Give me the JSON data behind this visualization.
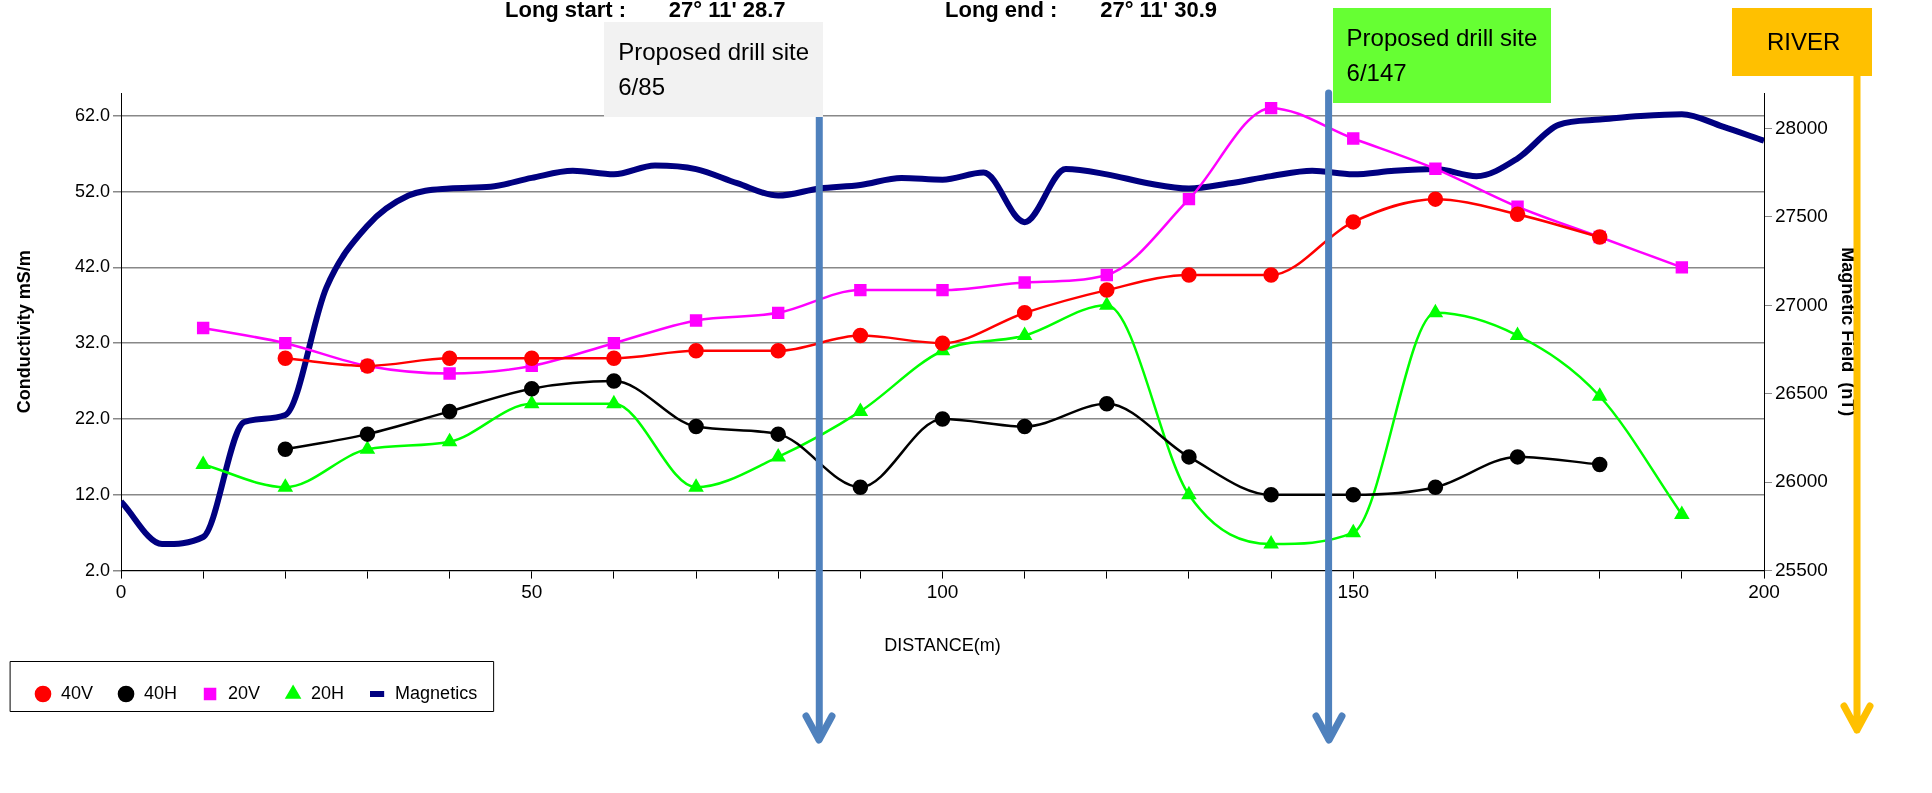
{
  "chart_data": {
    "type": "line",
    "xlabel": "DISTANCE(m)",
    "ylabel": "Conductivity mS/m",
    "y2label": "Magnetic Field  (nT)",
    "xlim": [
      0,
      200
    ],
    "xticks": [
      0,
      {
        "value": 10,
        "label": null
      },
      {
        "value": 20,
        "label": null
      },
      {
        "value": 30,
        "label": null
      },
      {
        "value": 40,
        "label": null
      },
      50,
      {
        "value": 60,
        "label": null
      },
      {
        "value": 70,
        "label": null
      },
      {
        "value": 80,
        "label": null
      },
      {
        "value": 90,
        "label": null
      },
      100,
      {
        "value": 110,
        "label": null
      },
      {
        "value": 120,
        "label": null
      },
      {
        "value": 130,
        "label": null
      },
      {
        "value": 140,
        "label": null
      },
      150,
      {
        "value": 160,
        "label": null
      },
      {
        "value": 170,
        "label": null
      },
      {
        "value": 180,
        "label": null
      },
      {
        "value": 190,
        "label": null
      },
      200
    ],
    "ylim": [
      2,
      65
    ],
    "yticks": [
      {
        "value": 2,
        "label": "2.0"
      },
      {
        "value": 12,
        "label": "12.0"
      },
      {
        "value": 22,
        "label": "22.0"
      },
      {
        "value": 32,
        "label": "32.0"
      },
      {
        "value": 42,
        "label": "42.0"
      },
      {
        "value": 52,
        "label": "52.0"
      },
      {
        "value": 62,
        "label": "62.0"
      }
    ],
    "y2lim": [
      25500,
      28200
    ],
    "y2ticks": [
      25500,
      26000,
      26500,
      27000,
      27500,
      28000
    ],
    "grid": "y",
    "legend": "bottom left",
    "ref_lines": [
      {
        "axis": "x",
        "value": 85,
        "label": "Proposed drill site 6/85",
        "color": "#4f81bd"
      },
      {
        "axis": "x",
        "value": 147,
        "label": "Proposed drill site 6/147",
        "color": "#4f81bd"
      }
    ],
    "annotations": [
      "Long start :       27° 11' 28.7",
      "Long end :       27° 11' 30.9",
      "RIVER"
    ],
    "series": [
      {
        "name": "40V",
        "color": "#ff0000",
        "marker": "circle",
        "x": [
          20,
          30,
          40,
          50,
          60,
          70,
          80,
          90,
          100,
          110,
          120,
          130,
          140,
          150,
          160,
          170,
          180
        ],
        "values": [
          30,
          29,
          30,
          30,
          30,
          31,
          31,
          33,
          32,
          36,
          39,
          41,
          41,
          48,
          51,
          49,
          46
        ]
      },
      {
        "name": "40H",
        "color": "#000000",
        "marker": "circle",
        "x": [
          20,
          30,
          40,
          50,
          60,
          70,
          80,
          90,
          100,
          110,
          120,
          130,
          140,
          150,
          160,
          170,
          180
        ],
        "values": [
          18,
          20,
          23,
          26,
          27,
          21,
          20,
          13,
          22,
          21,
          24,
          17,
          12,
          12,
          13,
          17,
          16
        ]
      },
      {
        "name": "20V",
        "color": "#ff00ff",
        "marker": "square",
        "x": [
          10,
          20,
          30,
          40,
          50,
          60,
          70,
          80,
          90,
          100,
          110,
          120,
          130,
          140,
          150,
          160,
          170,
          180,
          190
        ],
        "values": [
          34,
          32,
          29,
          28,
          29,
          32,
          35,
          36,
          39,
          39,
          40,
          41,
          51,
          63,
          59,
          55,
          50,
          46,
          42
        ]
      },
      {
        "name": "20H",
        "color": "#00ff00",
        "marker": "triangle",
        "x": [
          10,
          20,
          30,
          40,
          50,
          60,
          70,
          80,
          90,
          100,
          110,
          120,
          130,
          140,
          150,
          160,
          170,
          180,
          190
        ],
        "values": [
          16,
          13,
          18,
          19,
          24,
          24,
          13,
          17,
          23,
          31,
          33,
          37,
          12,
          5.5,
          7,
          36,
          33,
          25,
          9.4
        ]
      },
      {
        "name": "Magnetics",
        "color": "#000080",
        "marker": "none",
        "axis": "y2",
        "x": [
          0,
          5,
          10,
          15,
          20,
          25,
          30,
          35,
          40,
          45,
          50,
          55,
          60,
          65,
          70,
          75,
          80,
          85,
          90,
          95,
          100,
          105,
          110,
          115,
          120,
          125,
          130,
          135,
          140,
          145,
          150,
          155,
          160,
          165,
          170,
          175,
          180,
          185,
          190,
          195,
          200
        ],
        "values": [
          25890,
          25650,
          25690,
          26340,
          26380,
          27100,
          27450,
          27620,
          27660,
          27670,
          27720,
          27760,
          27740,
          27790,
          27770,
          27690,
          27620,
          27660,
          27680,
          27720,
          27710,
          27750,
          27470,
          27770,
          27740,
          27690,
          27660,
          27690,
          27730,
          27760,
          27740,
          27760,
          27770,
          27730,
          27830,
          28020,
          28050,
          28070,
          28080,
          28010,
          27930
        ]
      }
    ]
  }
}
